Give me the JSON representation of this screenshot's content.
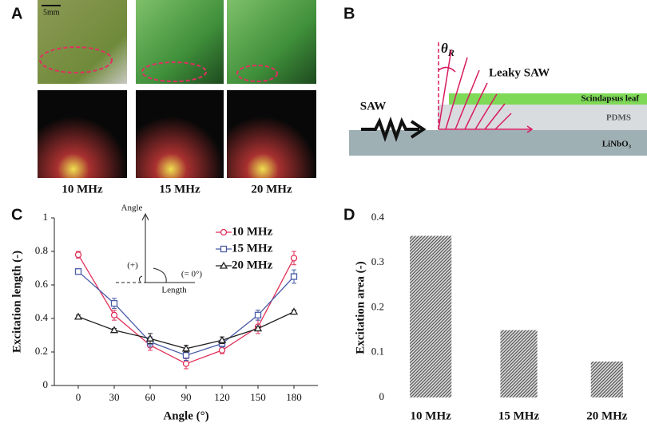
{
  "panel_a": {
    "label": "A",
    "scale": "5mm",
    "frequencies": [
      "10 MHz",
      "15 MHz",
      "20 MHz"
    ]
  },
  "panel_b": {
    "label": "B",
    "wave": "SAW",
    "theta": {
      "symbol": "θ",
      "subscript": "R"
    },
    "leaky": "Leaky SAW",
    "layers": [
      "Scindapsus leaf",
      "PDMS",
      "LiNbO₃"
    ]
  },
  "chart_data": [
    {
      "type": "line",
      "panel": "C",
      "xlabel": "Angle (°)",
      "ylabel": "Excitation length (-)",
      "x": [
        0,
        30,
        60,
        90,
        120,
        150,
        180
      ],
      "xlim": [
        -20,
        200
      ],
      "xticks": [
        0,
        30,
        60,
        90,
        120,
        150,
        180
      ],
      "ylim": [
        0,
        1
      ],
      "yticks": [
        0,
        0.2,
        0.4,
        0.6,
        0.8,
        1
      ],
      "inset": {
        "vertical": "Angle",
        "horizontal": "Length",
        "positive": "(+)",
        "zero": "(= 0°)"
      },
      "series": [
        {
          "name": "10 MHz",
          "color": "#e0305a",
          "marker": "circle",
          "values": [
            0.78,
            0.42,
            0.24,
            0.13,
            0.21,
            0.35,
            0.76
          ],
          "errors": [
            0.02,
            0.03,
            0.03,
            0.03,
            0.02,
            0.04,
            0.04
          ]
        },
        {
          "name": "15 MHz",
          "color": "#4a5ca8",
          "marker": "square",
          "values": [
            0.68,
            0.49,
            0.26,
            0.18,
            0.25,
            0.42,
            0.65
          ],
          "errors": [
            0.01,
            0.03,
            0.03,
            0.03,
            0.02,
            0.03,
            0.04
          ]
        },
        {
          "name": "20 MHz",
          "color": "#222222",
          "marker": "triangle",
          "values": [
            0.41,
            0.33,
            0.28,
            0.22,
            0.27,
            0.34,
            0.44
          ],
          "errors": [
            0.01,
            0.01,
            0.03,
            0.02,
            0.02,
            0.01,
            0.01
          ]
        }
      ]
    },
    {
      "type": "bar",
      "panel": "D",
      "ylabel": "Excitation area (-)",
      "categories": [
        "10 MHz",
        "15 MHz",
        "20 MHz"
      ],
      "values": [
        0.36,
        0.15,
        0.08
      ],
      "color": "#555555",
      "ylim": [
        0,
        0.4
      ],
      "yticks": [
        0,
        0.1,
        0.2,
        0.3,
        0.4
      ]
    }
  ]
}
